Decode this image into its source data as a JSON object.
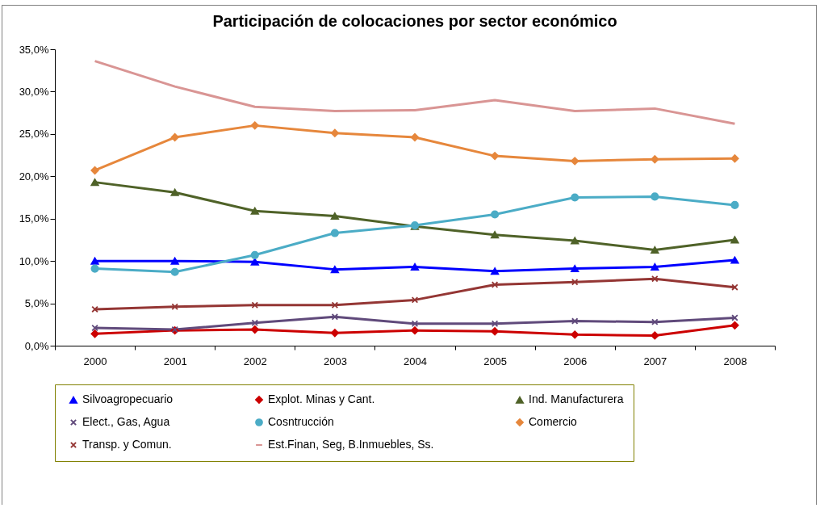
{
  "chart_data": {
    "type": "line",
    "title": "Participación de colocaciones por sector económico",
    "categories": [
      "2000",
      "2001",
      "2002",
      "2003",
      "2004",
      "2005",
      "2006",
      "2007",
      "2008"
    ],
    "ylim": [
      0,
      35
    ],
    "yticks": [
      {
        "value": 0,
        "label": "0,0%"
      },
      {
        "value": 5,
        "label": "5,0%"
      },
      {
        "value": 10,
        "label": "10,0%"
      },
      {
        "value": 15,
        "label": "15,0%"
      },
      {
        "value": 20,
        "label": "20,0%"
      },
      {
        "value": 25,
        "label": "25,0%"
      },
      {
        "value": 30,
        "label": "30,0%"
      },
      {
        "value": 35,
        "label": "35,0%"
      }
    ],
    "grid": false,
    "legend": "bottom",
    "series": [
      {
        "name": "Silvoagropecuario",
        "color": "#0000ff",
        "marker": "triangle",
        "values": [
          10.0,
          10.0,
          9.9,
          9.0,
          9.3,
          8.8,
          9.1,
          9.3,
          10.1
        ]
      },
      {
        "name": "Explot. Minas y Cant.",
        "color": "#cc0000",
        "marker": "diamond",
        "values": [
          1.4,
          1.8,
          1.9,
          1.5,
          1.8,
          1.7,
          1.3,
          1.2,
          2.4
        ]
      },
      {
        "name": "Ind. Manufacturera",
        "color": "#4f6228",
        "marker": "triangle",
        "values": [
          19.3,
          18.1,
          15.9,
          15.3,
          14.1,
          13.1,
          12.4,
          11.3,
          12.5
        ]
      },
      {
        "name": "Elect., Gas, Agua",
        "color": "#604a7b",
        "marker": "cross",
        "values": [
          2.1,
          1.9,
          2.7,
          3.4,
          2.6,
          2.6,
          2.9,
          2.8,
          3.3
        ]
      },
      {
        "name": "Cosntrucción",
        "color": "#4bacc6",
        "marker": "circle",
        "values": [
          9.1,
          8.7,
          10.7,
          13.3,
          14.2,
          15.5,
          17.5,
          17.6,
          16.6
        ]
      },
      {
        "name": "Comercio",
        "color": "#e6873c",
        "marker": "diamond",
        "values": [
          20.7,
          24.6,
          26.0,
          25.1,
          24.6,
          22.4,
          21.8,
          22.0,
          22.1
        ]
      },
      {
        "name": "Transp. y Comun.",
        "color": "#943634",
        "marker": "cross",
        "values": [
          4.3,
          4.6,
          4.8,
          4.8,
          5.4,
          7.2,
          7.5,
          7.9,
          6.9
        ]
      },
      {
        "name": "Est.Finan, Seg, B.Inmuebles, Ss.",
        "color": "#d99594",
        "marker": "none",
        "values": [
          33.6,
          30.6,
          28.2,
          27.7,
          27.8,
          29.0,
          27.7,
          28.0,
          26.2
        ]
      }
    ]
  }
}
